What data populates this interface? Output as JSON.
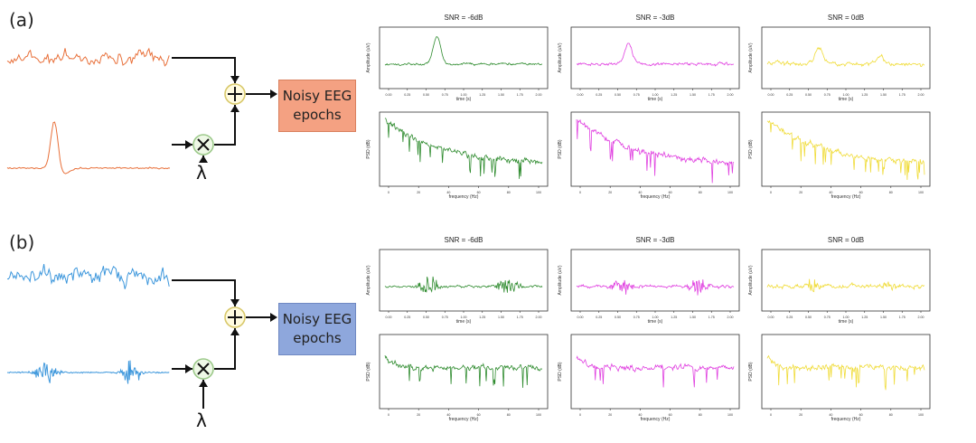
{
  "panels": [
    {
      "label": "(a)",
      "box": "Noisy EEG\nepochs",
      "lambda": "λ",
      "color": "#e8703a",
      "box_color": "#f4a182",
      "noise_kind": "EMG-like broadband noise",
      "artifact_kind": "single slow spike",
      "subplots": [
        {
          "title": "SNR = -6dB",
          "color": "#2e8b2e",
          "time_xlabel": "time (s)",
          "time_ylabel": "Amplitude (uV)",
          "time_ticks": [
            "0.00",
            "0.25",
            "0.50",
            "0.75",
            "1.00",
            "1.25",
            "1.50",
            "1.75",
            "2.00"
          ],
          "freq_xlabel": "frequency (Hz)",
          "freq_ylabel": "PSD (dB)",
          "freq_ticks": [
            "0",
            "20",
            "40",
            "60",
            "80",
            "100"
          ]
        },
        {
          "title": "SNR = -3dB",
          "color": "#e040e0",
          "time_xlabel": "time (s)",
          "time_ylabel": "Amplitude (uV)",
          "time_ticks": [
            "0.00",
            "0.25",
            "0.50",
            "0.75",
            "1.00",
            "1.25",
            "1.50",
            "1.75",
            "2.00"
          ],
          "freq_xlabel": "frequency (Hz)",
          "freq_ylabel": "PSD (dB)",
          "freq_ticks": [
            "0",
            "20",
            "40",
            "60",
            "80",
            "100"
          ]
        },
        {
          "title": "SNR = 0dB",
          "color": "#f0dc3a",
          "time_xlabel": "time (s)",
          "time_ylabel": "Amplitude (uV)",
          "time_ticks": [
            "0.00",
            "0.25",
            "0.50",
            "0.75",
            "1.00",
            "1.25",
            "1.50",
            "1.75",
            "2.00"
          ],
          "freq_xlabel": "frequency (Hz)",
          "freq_ylabel": "PSD (dB)",
          "freq_ticks": [
            "0",
            "20",
            "40",
            "60",
            "80",
            "100"
          ]
        }
      ]
    },
    {
      "label": "(b)",
      "box": "Noisy EEG\nepochs",
      "lambda": "λ",
      "color": "#3d97dc",
      "box_color": "#8ea7dc",
      "noise_kind": "EEG broadband",
      "artifact_kind": "two high-frequency bursts",
      "subplots": [
        {
          "title": "SNR = -6dB",
          "color": "#2e8b2e",
          "time_xlabel": "time (s)",
          "time_ylabel": "Amplitude (uV)",
          "time_ticks": [
            "0.00",
            "0.25",
            "0.50",
            "0.75",
            "1.00",
            "1.25",
            "1.50",
            "1.75",
            "2.00"
          ],
          "freq_xlabel": "frequency (Hz)",
          "freq_ylabel": "PSD (dB)",
          "freq_ticks": [
            "0",
            "20",
            "40",
            "60",
            "80",
            "100"
          ]
        },
        {
          "title": "SNR = -3dB",
          "color": "#e040e0",
          "time_xlabel": "time (s)",
          "time_ylabel": "Amplitude (uV)",
          "time_ticks": [
            "0.00",
            "0.25",
            "0.50",
            "0.75",
            "1.00",
            "1.25",
            "1.50",
            "1.75",
            "2.00"
          ],
          "freq_xlabel": "frequency (Hz)",
          "freq_ylabel": "PSD (dB)",
          "freq_ticks": [
            "0",
            "20",
            "40",
            "60",
            "80",
            "100"
          ]
        },
        {
          "title": "SNR = 0dB",
          "color": "#f0dc3a",
          "time_xlabel": "time (s)",
          "time_ylabel": "Amplitude (uV)",
          "time_ticks": [
            "0.00",
            "0.25",
            "0.50",
            "0.75",
            "1.00",
            "1.25",
            "1.50",
            "1.75",
            "2.00"
          ],
          "freq_xlabel": "frequency (Hz)",
          "freq_ylabel": "PSD (dB)",
          "freq_ticks": [
            "0",
            "20",
            "40",
            "60",
            "80",
            "100"
          ]
        }
      ]
    }
  ]
}
